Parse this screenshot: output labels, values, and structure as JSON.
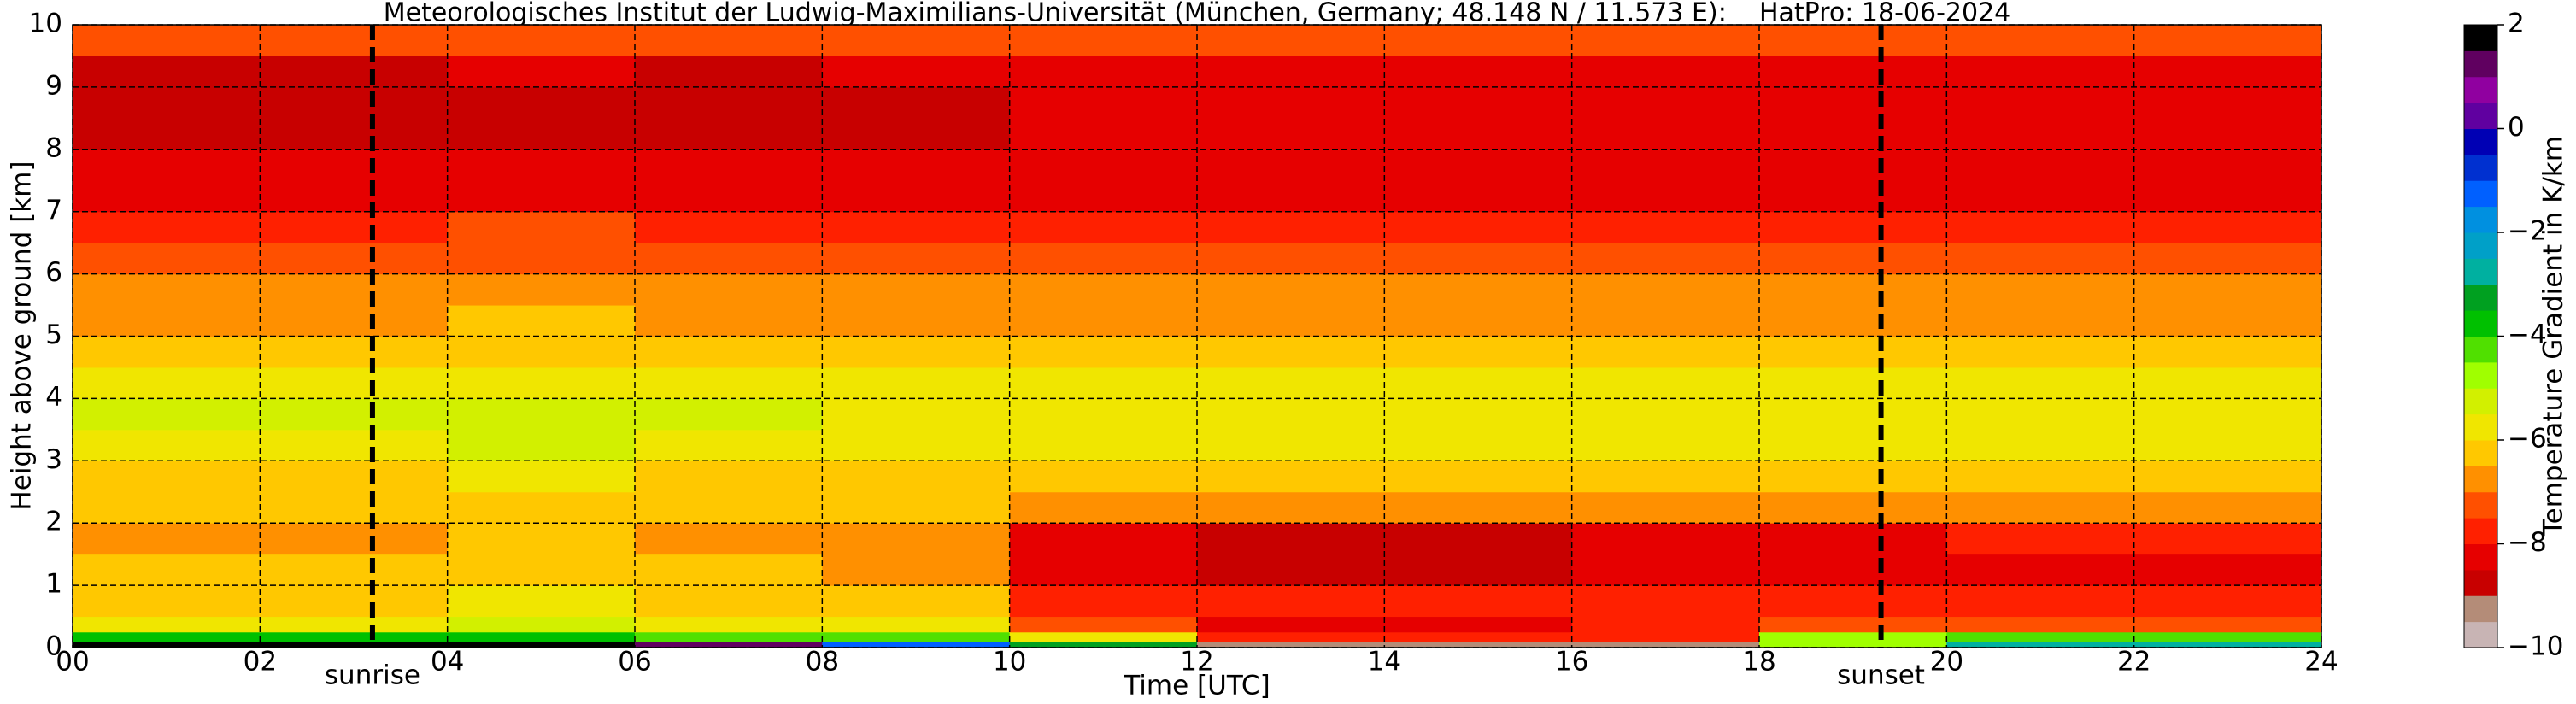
{
  "chart_data": {
    "type": "heatmap",
    "title": "Meteorologisches Institut der Ludwig-Maximilians-Universität (München, Germany; 48.148 N / 11.573 E):    HatPro: 18-06-2024",
    "xlabel": "Time [UTC]",
    "ylabel": "Height above ground [km]",
    "xlim": [
      0,
      24
    ],
    "ylim": [
      0,
      10
    ],
    "xticks": [
      {
        "value": 0,
        "label": "00"
      },
      {
        "value": 2,
        "label": "02"
      },
      {
        "value": 4,
        "label": "04"
      },
      {
        "value": 6,
        "label": "06"
      },
      {
        "value": 8,
        "label": "08"
      },
      {
        "value": 10,
        "label": "10"
      },
      {
        "value": 12,
        "label": "12"
      },
      {
        "value": 14,
        "label": "14"
      },
      {
        "value": 16,
        "label": "16"
      },
      {
        "value": 18,
        "label": "18"
      },
      {
        "value": 20,
        "label": "20"
      },
      {
        "value": 22,
        "label": "22"
      },
      {
        "value": 24,
        "label": "24"
      }
    ],
    "yticks": [
      0,
      1,
      2,
      3,
      4,
      5,
      6,
      7,
      8,
      9,
      10
    ],
    "grid": true,
    "x_edges": [
      0,
      2,
      4,
      6,
      8,
      10,
      12,
      14,
      16,
      18,
      20,
      22,
      24
    ],
    "y_edges": [
      0,
      0.1,
      0.25,
      0.5,
      1,
      1.5,
      2,
      2.5,
      3,
      3.5,
      4,
      4.5,
      5,
      5.5,
      6,
      6.5,
      7,
      7.5,
      8,
      8.5,
      9,
      9.5,
      10
    ],
    "z": [
      [
        1.8,
        1.8,
        1.5,
        1.0,
        -1.5,
        -3.5,
        -9.2,
        -9.2,
        -9.2,
        -5,
        -3,
        -3
      ],
      [
        -4,
        -4,
        -4,
        -4.2,
        -4.5,
        -6,
        -7.8,
        -7.8,
        -7.8,
        -5,
        -4.5,
        -4.5
      ],
      [
        -5.8,
        -5.8,
        -5.5,
        -5.8,
        -6,
        -7.5,
        -8.3,
        -8.3,
        -7.8,
        -7.5,
        -7.3,
        -7.3
      ],
      [
        -6.3,
        -6.3,
        -6,
        -6.3,
        -6.5,
        -7.8,
        -8,
        -8,
        -7.8,
        -7.8,
        -7.8,
        -7.8
      ],
      [
        -6.5,
        -6.5,
        -6.2,
        -6.5,
        -7,
        -8.3,
        -8.6,
        -8.6,
        -8.4,
        -8.2,
        -8.2,
        -8.2
      ],
      [
        -6.7,
        -6.7,
        -6.4,
        -6.6,
        -7,
        -8.2,
        -8.6,
        -8.6,
        -8.4,
        -8.1,
        -8,
        -8
      ],
      [
        -6.5,
        -6.5,
        -6.2,
        -6.4,
        -6.5,
        -6.8,
        -7,
        -7,
        -7,
        -6.8,
        -6.7,
        -6.7
      ],
      [
        -6.2,
        -6.2,
        -6.0,
        -6.2,
        -6.2,
        -6.3,
        -6.4,
        -6.4,
        -6.4,
        -6.3,
        -6.2,
        -6.2
      ],
      [
        -5.7,
        -5.7,
        -5.5,
        -5.7,
        -5.8,
        -5.9,
        -6.0,
        -6.0,
        -6.0,
        -5.9,
        -5.8,
        -5.8
      ],
      [
        -5.3,
        -5.3,
        -5.2,
        -5.5,
        -5.6,
        -5.8,
        -5.8,
        -5.8,
        -5.8,
        -5.7,
        -5.6,
        -5.6
      ],
      [
        -5.8,
        -5.8,
        -5.7,
        -5.8,
        -5.9,
        -6.0,
        -6.0,
        -6.0,
        -6.0,
        -5.9,
        -5.9,
        -5.9
      ],
      [
        -6.2,
        -6.2,
        -6.1,
        -6.2,
        -6.2,
        -6.3,
        -6.3,
        -6.3,
        -6.3,
        -6.2,
        -6.2,
        -6.2
      ],
      [
        -6.6,
        -6.6,
        -6.5,
        -6.6,
        -6.6,
        -6.6,
        -6.7,
        -6.7,
        -6.7,
        -6.6,
        -6.6,
        -6.6
      ],
      [
        -6.9,
        -6.9,
        -6.8,
        -6.9,
        -6.9,
        -6.9,
        -7.0,
        -7.0,
        -7.0,
        -6.9,
        -6.9,
        -6.9
      ],
      [
        -7.2,
        -7.2,
        -7.1,
        -7.2,
        -7.2,
        -7.2,
        -7.3,
        -7.3,
        -7.3,
        -7.2,
        -7.2,
        -7.2
      ],
      [
        -7.6,
        -7.6,
        -7.5,
        -7.6,
        -7.6,
        -7.6,
        -7.7,
        -7.7,
        -7.7,
        -7.6,
        -7.6,
        -7.6
      ],
      [
        -8.2,
        -8.2,
        -8.1,
        -8.2,
        -8.2,
        -8.1,
        -8.1,
        -8.1,
        -8.1,
        -8.1,
        -8.1,
        -8.1
      ],
      [
        -8.3,
        -8.3,
        -8.2,
        -8.3,
        -8.3,
        -8.2,
        -8.1,
        -8.1,
        -8.1,
        -8.1,
        -8.1,
        -8.1
      ],
      [
        -8.7,
        -8.7,
        -8.6,
        -8.7,
        -8.6,
        -8.4,
        -8.2,
        -8.2,
        -8.2,
        -8.2,
        -8.2,
        -8.2
      ],
      [
        -8.8,
        -8.8,
        -8.7,
        -8.8,
        -8.7,
        -8.5,
        -8.2,
        -8.2,
        -8.2,
        -8.2,
        -8.2,
        -8.2
      ],
      [
        -8.6,
        -8.6,
        -8.5,
        -8.6,
        -8.5,
        -8.3,
        -8.1,
        -8.1,
        -8.1,
        -8.1,
        -8.1,
        -8.1
      ],
      [
        -7.4,
        -7.4,
        -7.3,
        -7.4,
        -7.4,
        -7.3,
        -7.2,
        -7.2,
        -7.2,
        -7.2,
        -7.2,
        -7.2
      ]
    ],
    "annotations": [
      {
        "text": "sunrise",
        "x": 3.2
      },
      {
        "text": "sunset",
        "x": 19.3
      }
    ],
    "colorbar": {
      "label": "Temperature Gradient in K/km",
      "lim": [
        -10,
        2
      ],
      "ticks": [
        {
          "value": -10,
          "label": "−10"
        },
        {
          "value": -8,
          "label": "−8"
        },
        {
          "value": -6,
          "label": "−6"
        },
        {
          "value": -4,
          "label": "−4"
        },
        {
          "value": -2,
          "label": "−2"
        },
        0,
        2
      ],
      "bounds": [
        -10,
        -9.5,
        -9,
        -8.5,
        -8,
        -7.5,
        -7,
        -6.5,
        -6,
        -5.5,
        -5,
        -4.5,
        -4,
        -3.5,
        -3,
        -2.5,
        -2,
        -1.5,
        -1,
        -0.5,
        0,
        0.5,
        1,
        1.5,
        2
      ],
      "colors": [
        "#c8b4b4",
        "#b48c78",
        "#c80000",
        "#e60000",
        "#ff2000",
        "#ff5000",
        "#ff9000",
        "#ffc800",
        "#f0e600",
        "#d2f000",
        "#a0ff00",
        "#50e000",
        "#00c000",
        "#00a020",
        "#00b0a0",
        "#00a0c8",
        "#0090e0",
        "#0060ff",
        "#0030d0",
        "#0000b4",
        "#6000a0",
        "#9000a0",
        "#600060",
        "#000000"
      ]
    }
  }
}
